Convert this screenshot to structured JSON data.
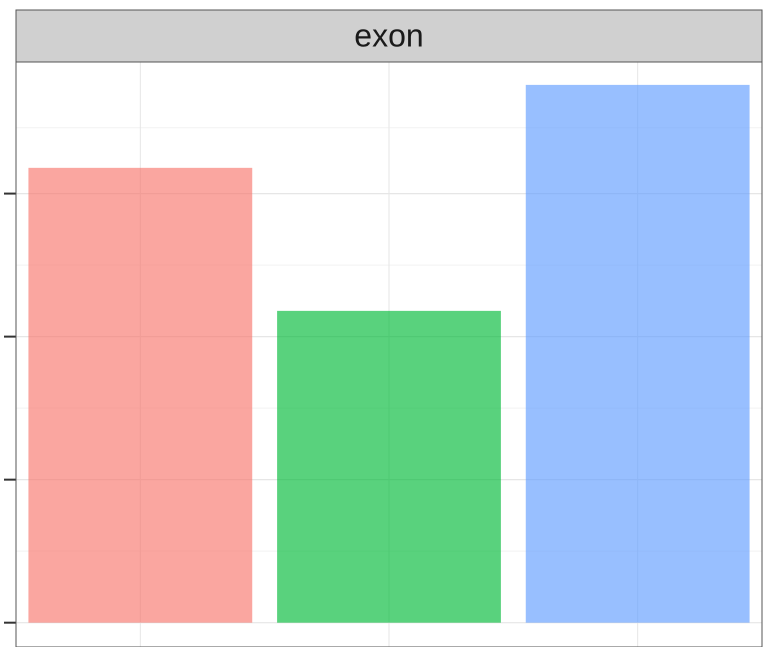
{
  "chart_data": {
    "type": "bar",
    "title": "exon",
    "categories": [
      null,
      null,
      null
    ],
    "values": [
      3.18,
      2.18,
      3.76
    ],
    "colors": [
      "#F8766D",
      "#00BA38",
      "#619CFF"
    ],
    "ylim": [
      -0.17,
      3.92
    ],
    "yticks": [
      0,
      1,
      2,
      3
    ],
    "grid": true
  }
}
